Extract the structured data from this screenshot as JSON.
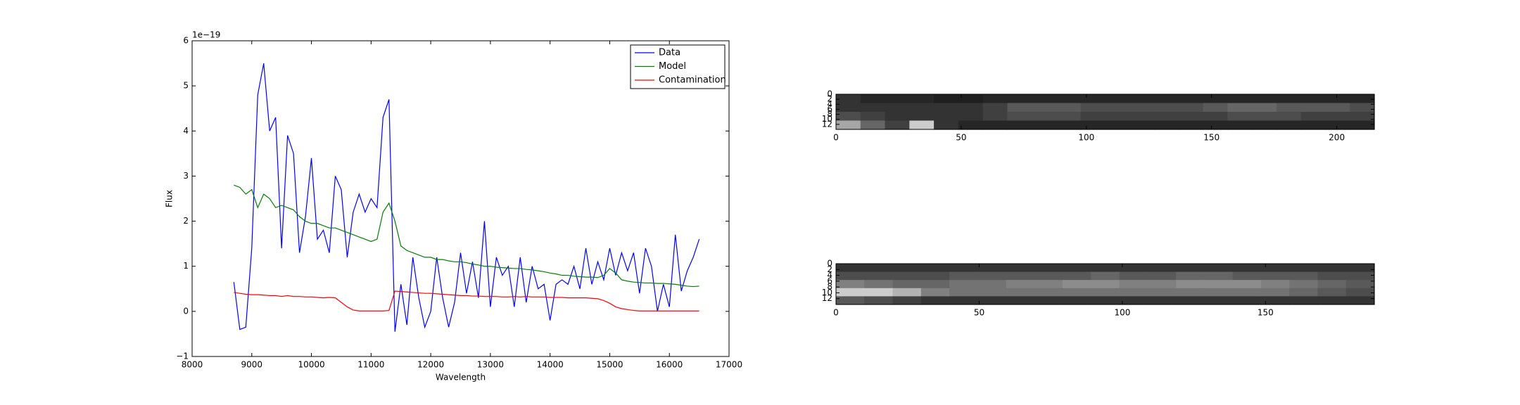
{
  "chart_data": [
    {
      "type": "line",
      "xlabel": "Wavelength",
      "ylabel": "Flux",
      "offset_label": "1e−19",
      "xlim": [
        8000,
        17000
      ],
      "xticks": [
        8000,
        9000,
        10000,
        11000,
        12000,
        13000,
        14000,
        15000,
        16000,
        17000
      ],
      "ylim": [
        -1,
        6
      ],
      "yticks": [
        {
          "value": -1,
          "label": "−1"
        },
        0,
        1,
        2,
        3,
        4,
        5,
        6
      ],
      "legend": "upper right",
      "x": [
        8700,
        8800,
        8900,
        9000,
        9100,
        9200,
        9300,
        9400,
        9500,
        9600,
        9700,
        9800,
        9900,
        10000,
        10100,
        10200,
        10300,
        10400,
        10500,
        10600,
        10700,
        10800,
        10900,
        11000,
        11100,
        11200,
        11300,
        11400,
        11500,
        11600,
        11700,
        11800,
        11900,
        12000,
        12100,
        12200,
        12300,
        12400,
        12500,
        12600,
        12700,
        12800,
        12900,
        13000,
        13100,
        13200,
        13300,
        13400,
        13500,
        13600,
        13700,
        13800,
        13900,
        14000,
        14100,
        14200,
        14300,
        14400,
        14500,
        14600,
        14700,
        14800,
        14900,
        15000,
        15100,
        15200,
        15300,
        15400,
        15500,
        15600,
        15700,
        15800,
        15900,
        16000,
        16100,
        16200,
        16300,
        16400,
        16500
      ],
      "series": [
        {
          "name": "Data",
          "color": "#0000ff",
          "values": [
            0.65,
            -0.4,
            -0.35,
            1.4,
            4.8,
            5.5,
            4.0,
            4.3,
            1.4,
            3.9,
            3.5,
            1.3,
            2.1,
            3.4,
            1.6,
            1.8,
            1.3,
            3.0,
            2.7,
            1.2,
            2.2,
            2.6,
            2.2,
            2.5,
            2.3,
            4.3,
            4.7,
            -0.45,
            0.6,
            -0.3,
            1.2,
            0.3,
            -0.35,
            0.0,
            1.2,
            0.3,
            -0.35,
            0.2,
            1.3,
            0.4,
            1.1,
            0.3,
            2.0,
            0.1,
            1.2,
            0.8,
            1.0,
            0.1,
            1.2,
            0.2,
            1.0,
            0.5,
            0.6,
            -0.2,
            0.6,
            0.7,
            0.6,
            1.0,
            0.5,
            1.4,
            0.6,
            1.1,
            0.7,
            1.4,
            0.8,
            1.3,
            0.9,
            1.3,
            0.4,
            1.4,
            1.0,
            0.0,
            0.6,
            0.1,
            1.7,
            0.45,
            0.9,
            1.2,
            1.6
          ]
        },
        {
          "name": "Model",
          "color": "#008000",
          "values": [
            2.8,
            2.75,
            2.6,
            2.7,
            2.3,
            2.6,
            2.5,
            2.3,
            2.35,
            2.3,
            2.25,
            2.1,
            2.0,
            1.95,
            1.95,
            1.9,
            1.85,
            1.85,
            1.8,
            1.75,
            1.7,
            1.65,
            1.6,
            1.55,
            1.6,
            2.2,
            2.4,
            2.0,
            1.45,
            1.35,
            1.3,
            1.25,
            1.2,
            1.2,
            1.15,
            1.15,
            1.12,
            1.1,
            1.1,
            1.08,
            1.05,
            1.03,
            1.0,
            1.0,
            0.98,
            0.97,
            0.96,
            0.95,
            0.95,
            0.93,
            0.92,
            0.9,
            0.88,
            0.85,
            0.83,
            0.8,
            0.8,
            0.78,
            0.77,
            0.76,
            0.76,
            0.75,
            0.8,
            0.95,
            0.85,
            0.7,
            0.67,
            0.65,
            0.64,
            0.63,
            0.63,
            0.62,
            0.62,
            0.61,
            0.6,
            0.58,
            0.56,
            0.55,
            0.56
          ]
        },
        {
          "name": "Contamination",
          "color": "#ff0000",
          "values": [
            0.42,
            0.4,
            0.38,
            0.37,
            0.37,
            0.36,
            0.35,
            0.35,
            0.33,
            0.35,
            0.33,
            0.33,
            0.32,
            0.32,
            0.31,
            0.3,
            0.31,
            0.3,
            0.2,
            0.1,
            0.03,
            0.01,
            0.01,
            0.01,
            0.01,
            0.01,
            0.02,
            0.45,
            0.44,
            0.43,
            0.42,
            0.41,
            0.4,
            0.4,
            0.39,
            0.38,
            0.37,
            0.36,
            0.35,
            0.35,
            0.34,
            0.34,
            0.33,
            0.33,
            0.33,
            0.32,
            0.32,
            0.33,
            0.32,
            0.33,
            0.32,
            0.32,
            0.32,
            0.31,
            0.31,
            0.31,
            0.3,
            0.3,
            0.3,
            0.3,
            0.29,
            0.28,
            0.24,
            0.18,
            0.1,
            0.06,
            0.04,
            0.02,
            0.01,
            0.01,
            0.01,
            0.01,
            0.01,
            0.01,
            0.01,
            0.01,
            0.01,
            0.01,
            0.01
          ]
        }
      ]
    },
    {
      "type": "heatmap",
      "xlim": [
        0,
        215
      ],
      "xticks": [
        0,
        50,
        100,
        150,
        200
      ],
      "ylim": [
        14,
        0
      ],
      "yticks": [
        0,
        2,
        4,
        6,
        8,
        10,
        12
      ],
      "z": [
        [
          0.2,
          0.15,
          0.15,
          0.15,
          0.12,
          0.12,
          0.15,
          0.15,
          0.15,
          0.15,
          0.15,
          0.15,
          0.15,
          0.15,
          0.15,
          0.15,
          0.15,
          0.15,
          0.15,
          0.15,
          0.15,
          0.15
        ],
        [
          0.2,
          0.2,
          0.2,
          0.2,
          0.2,
          0.2,
          0.25,
          0.35,
          0.35,
          0.35,
          0.3,
          0.3,
          0.3,
          0.3,
          0.3,
          0.35,
          0.4,
          0.4,
          0.35,
          0.35,
          0.35,
          0.3
        ],
        [
          0.3,
          0.25,
          0.2,
          0.2,
          0.2,
          0.2,
          0.25,
          0.3,
          0.3,
          0.3,
          0.25,
          0.25,
          0.25,
          0.25,
          0.25,
          0.25,
          0.3,
          0.3,
          0.3,
          0.25,
          0.25,
          0.25
        ],
        [
          0.65,
          0.4,
          0.25,
          0.8,
          0.2,
          0.15,
          0.15,
          0.15,
          0.15,
          0.15,
          0.15,
          0.15,
          0.15,
          0.15,
          0.15,
          0.15,
          0.15,
          0.15,
          0.15,
          0.15,
          0.15,
          0.15
        ]
      ]
    },
    {
      "type": "heatmap",
      "xlim": [
        0,
        188
      ],
      "xticks": [
        0,
        50,
        100,
        150
      ],
      "ylim": [
        14,
        0
      ],
      "yticks": [
        0,
        2,
        4,
        6,
        8,
        10,
        12
      ],
      "z": [
        [
          0.2,
          0.2,
          0.2,
          0.2,
          0.2,
          0.2,
          0.2,
          0.2,
          0.2,
          0.2,
          0.2,
          0.2,
          0.2,
          0.2,
          0.2,
          0.2,
          0.2,
          0.2,
          0.2
        ],
        [
          0.3,
          0.3,
          0.3,
          0.3,
          0.35,
          0.35,
          0.35,
          0.35,
          0.35,
          0.4,
          0.35,
          0.35,
          0.4,
          0.4,
          0.35,
          0.35,
          0.35,
          0.3,
          0.3
        ],
        [
          0.5,
          0.45,
          0.4,
          0.4,
          0.45,
          0.45,
          0.5,
          0.5,
          0.55,
          0.55,
          0.5,
          0.5,
          0.55,
          0.55,
          0.55,
          0.5,
          0.45,
          0.4,
          0.35
        ],
        [
          0.8,
          0.8,
          0.7,
          0.5,
          0.45,
          0.45,
          0.45,
          0.45,
          0.45,
          0.45,
          0.45,
          0.45,
          0.45,
          0.45,
          0.45,
          0.45,
          0.4,
          0.35,
          0.3
        ],
        [
          0.35,
          0.3,
          0.25,
          0.2,
          0.2,
          0.2,
          0.2,
          0.2,
          0.2,
          0.2,
          0.2,
          0.2,
          0.2,
          0.2,
          0.2,
          0.2,
          0.2,
          0.2,
          0.2
        ]
      ]
    }
  ]
}
